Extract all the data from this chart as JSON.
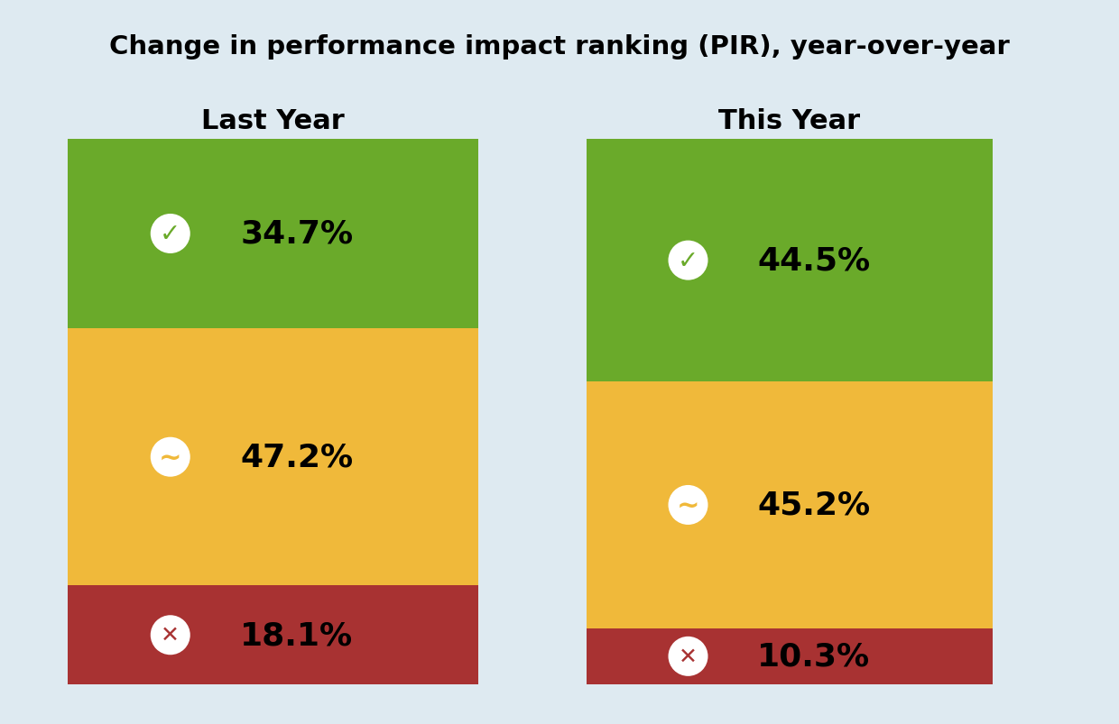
{
  "title": "Change in performance impact ranking (PIR), year-over-year",
  "background_color": "#deeaf1",
  "columns": [
    "Last Year",
    "This Year"
  ],
  "segments": {
    "Last Year": {
      "green": 34.7,
      "yellow": 47.2,
      "red": 18.1
    },
    "This Year": {
      "green": 44.5,
      "yellow": 45.2,
      "red": 10.3
    }
  },
  "colors": {
    "green": "#6aaa2a",
    "yellow": "#f0b93a",
    "red": "#a83232"
  },
  "title_fontsize": 21,
  "label_fontsize": 26,
  "header_fontsize": 22,
  "icon_fontsize_check": 20,
  "icon_fontsize_tilde": 18,
  "icon_fontsize_cross": 20
}
